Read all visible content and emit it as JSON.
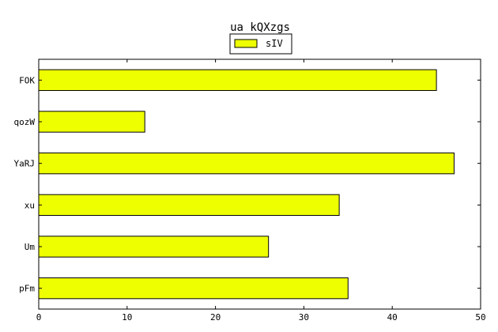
{
  "chart_data": {
    "type": "bar",
    "orientation": "horizontal",
    "title": "ua kQXzgs",
    "xlabel": "",
    "ylabel": "",
    "categories": [
      "FOK",
      "qozW",
      "YaRJ",
      "xu",
      "Um",
      "pFm"
    ],
    "series": [
      {
        "name": "sIV",
        "values": [
          45,
          12,
          47,
          34,
          26,
          35
        ],
        "color": "#eeff00"
      }
    ],
    "xlim": [
      0,
      50
    ],
    "xticks": [
      0,
      10,
      20,
      30,
      40,
      50
    ],
    "grid": false,
    "legend_position": "top-center"
  }
}
